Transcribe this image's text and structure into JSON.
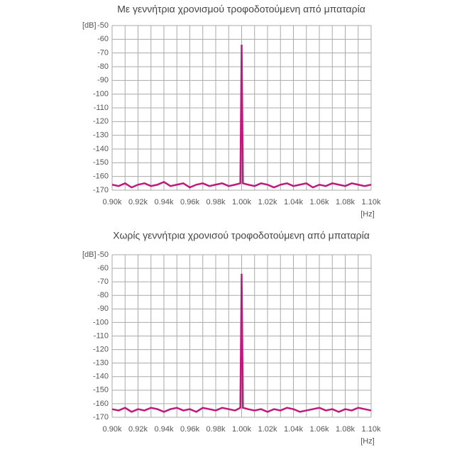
{
  "chart_data": [
    {
      "type": "line",
      "title": "Με γεννήτρια χρονισμού τροφοδοτούμενη από μπαταρία",
      "ylabel": "[dB]",
      "xlabel": "[Hz]",
      "color": "#c0187c",
      "xlim": [
        900,
        1100
      ],
      "ylim": [
        -170,
        -50
      ],
      "xticks": [
        {
          "value": 900,
          "label": "0.90k"
        },
        {
          "value": 920,
          "label": "0.92k"
        },
        {
          "value": 940,
          "label": "0.94k"
        },
        {
          "value": 960,
          "label": "0.96k"
        },
        {
          "value": 980,
          "label": "0.98k"
        },
        {
          "value": 1000,
          "label": "1.00k"
        },
        {
          "value": 1020,
          "label": "1.02k"
        },
        {
          "value": 1040,
          "label": "1.04k"
        },
        {
          "value": 1060,
          "label": "1.06k"
        },
        {
          "value": 1080,
          "label": "1.08k"
        },
        {
          "value": 1100,
          "label": "1.10k"
        }
      ],
      "xminor": [
        910,
        930,
        950,
        970,
        990,
        1010,
        1030,
        1050,
        1070,
        1090
      ],
      "yticks": [
        -50,
        -60,
        -70,
        -80,
        -90,
        -100,
        -110,
        -120,
        -130,
        -140,
        -150,
        -160,
        -170
      ],
      "grid": true,
      "x": [
        900,
        905,
        910,
        915,
        920,
        925,
        930,
        935,
        940,
        945,
        950,
        955,
        960,
        965,
        970,
        975,
        980,
        985,
        990,
        995,
        999,
        1000,
        1001,
        1005,
        1010,
        1015,
        1020,
        1025,
        1030,
        1035,
        1040,
        1045,
        1050,
        1055,
        1060,
        1065,
        1070,
        1075,
        1080,
        1085,
        1090,
        1095,
        1100
      ],
      "values": [
        -166,
        -167,
        -165,
        -168,
        -166,
        -165,
        -167,
        -166,
        -164,
        -167,
        -166,
        -165,
        -168,
        -166,
        -165,
        -167,
        -166,
        -165,
        -167,
        -166,
        -165,
        -64,
        -165,
        -166,
        -167,
        -165,
        -166,
        -168,
        -166,
        -165,
        -167,
        -166,
        -165,
        -168,
        -166,
        -167,
        -165,
        -166,
        -167,
        -165,
        -166,
        -167,
        -166
      ]
    },
    {
      "type": "line",
      "title": "Χωρίς γεννήτρια χρονισού τροφοδοτούμενη από μπαταρία",
      "ylabel": "[dB]",
      "xlabel": "[Hz]",
      "color": "#c0187c",
      "xlim": [
        900,
        1100
      ],
      "ylim": [
        -170,
        -50
      ],
      "xticks": [
        {
          "value": 900,
          "label": "0.90k"
        },
        {
          "value": 920,
          "label": "0.92k"
        },
        {
          "value": 940,
          "label": "0.94k"
        },
        {
          "value": 960,
          "label": "0.96k"
        },
        {
          "value": 980,
          "label": "0.98k"
        },
        {
          "value": 1000,
          "label": "1.00k"
        },
        {
          "value": 1020,
          "label": "1.02k"
        },
        {
          "value": 1040,
          "label": "1.04k"
        },
        {
          "value": 1060,
          "label": "1.06k"
        },
        {
          "value": 1080,
          "label": "1.08k"
        },
        {
          "value": 1100,
          "label": "1.10k"
        }
      ],
      "xminor": [
        910,
        930,
        950,
        970,
        990,
        1010,
        1030,
        1050,
        1070,
        1090
      ],
      "yticks": [
        -50,
        -60,
        -70,
        -80,
        -90,
        -100,
        -110,
        -120,
        -130,
        -140,
        -150,
        -160,
        -170
      ],
      "grid": true,
      "x": [
        900,
        905,
        910,
        915,
        920,
        925,
        930,
        935,
        940,
        945,
        950,
        955,
        960,
        965,
        970,
        975,
        980,
        985,
        990,
        995,
        999,
        1000,
        1001,
        1005,
        1010,
        1015,
        1020,
        1025,
        1030,
        1035,
        1040,
        1045,
        1050,
        1055,
        1060,
        1065,
        1070,
        1075,
        1080,
        1085,
        1090,
        1095,
        1100
      ],
      "values": [
        -164,
        -165,
        -163,
        -166,
        -164,
        -165,
        -163,
        -164,
        -166,
        -164,
        -163,
        -165,
        -164,
        -166,
        -163,
        -164,
        -165,
        -163,
        -164,
        -165,
        -163,
        -64,
        -163,
        -164,
        -165,
        -164,
        -166,
        -164,
        -165,
        -163,
        -164,
        -166,
        -165,
        -164,
        -163,
        -165,
        -164,
        -166,
        -164,
        -165,
        -163,
        -164,
        -165
      ]
    }
  ]
}
